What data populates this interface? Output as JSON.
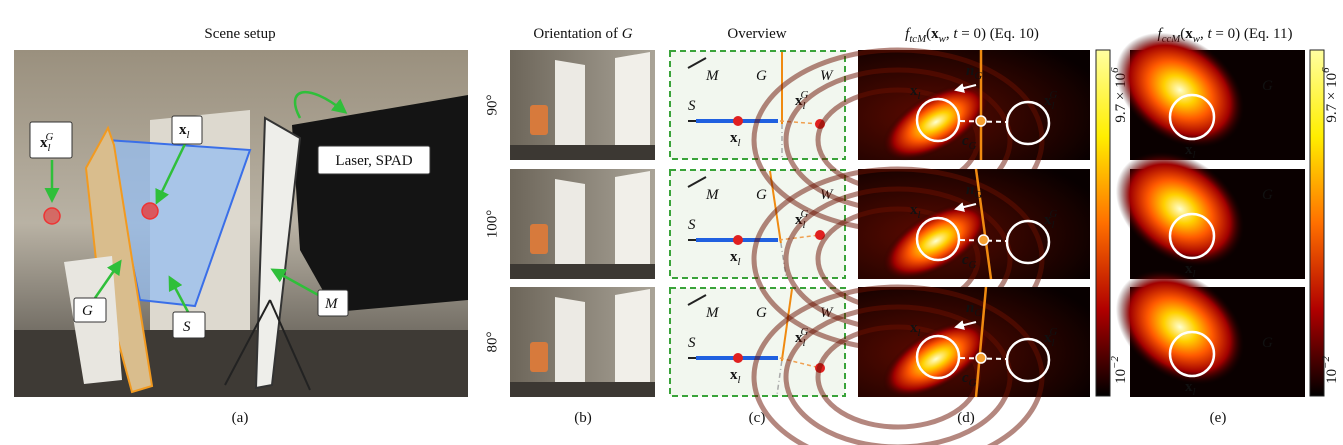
{
  "panel_a": {
    "title": "Scene setup",
    "caption": "(a)",
    "labels": {
      "xlG": [
        {
          "t": "x",
          "s": "b"
        },
        {
          "t": "l",
          "s": "sub"
        },
        {
          "t": "G",
          "s": "sup"
        }
      ],
      "xl": [
        {
          "t": "x",
          "s": "b"
        },
        {
          "t": "l",
          "s": "sub"
        }
      ],
      "G": [
        {
          "t": "G",
          "s": "i"
        }
      ],
      "S": [
        {
          "t": "S",
          "s": "i"
        }
      ],
      "M": [
        {
          "t": "M",
          "s": "i"
        }
      ],
      "laser": "Laser, SPAD"
    }
  },
  "panel_b": {
    "title": [
      {
        "t": "Orientation of ",
        "s": "r"
      },
      {
        "t": "G",
        "s": "i"
      }
    ],
    "caption": "(b)",
    "rows": [
      "90°",
      "100°",
      "80°"
    ]
  },
  "panel_c": {
    "title": "Overview",
    "caption": "(c)",
    "labels": {
      "M": [
        {
          "t": "M",
          "s": "i"
        }
      ],
      "G": [
        {
          "t": "G",
          "s": "i"
        }
      ],
      "W": [
        {
          "t": "W",
          "s": "i"
        }
      ],
      "S": [
        {
          "t": "S",
          "s": "i"
        }
      ],
      "xl": [
        {
          "t": "x",
          "s": "b"
        },
        {
          "t": "l",
          "s": "sub"
        }
      ],
      "xlG": [
        {
          "t": "x",
          "s": "b"
        },
        {
          "t": "l",
          "s": "sub"
        },
        {
          "t": "G",
          "s": "sup"
        }
      ]
    }
  },
  "panel_d": {
    "title": [
      {
        "t": "f",
        "s": "i"
      },
      {
        "t": "tcM",
        "s": "sub"
      },
      {
        "t": "(",
        "s": "r"
      },
      {
        "t": "x",
        "s": "b"
      },
      {
        "t": "w",
        "s": "sub"
      },
      {
        "t": ", ",
        "s": "r"
      },
      {
        "t": "t",
        "s": "i"
      },
      {
        "t": " = 0) (Eq. 10)",
        "s": "r"
      }
    ],
    "caption": "(d)",
    "labels": {
      "nG": [
        {
          "t": "n",
          "s": "bi"
        },
        {
          "t": "G",
          "s": "sub"
        }
      ],
      "xl": [
        {
          "t": "x",
          "s": "b"
        },
        {
          "t": "l",
          "s": "sub"
        }
      ],
      "xlG": [
        {
          "t": "x",
          "s": "b"
        },
        {
          "t": "l",
          "s": "sub"
        },
        {
          "t": "G",
          "s": "sup"
        }
      ],
      "cG": [
        {
          "t": "c",
          "s": "bi"
        },
        {
          "t": "G",
          "s": "sub"
        }
      ]
    },
    "colorbar_max": [
      {
        "t": "9.7 × 10",
        "s": "r"
      },
      {
        "t": "6",
        "s": "sup"
      }
    ],
    "colorbar_min": [
      {
        "t": "10",
        "s": "r"
      },
      {
        "t": "−2",
        "s": "sup"
      }
    ]
  },
  "panel_e": {
    "title": [
      {
        "t": "f",
        "s": "i"
      },
      {
        "t": "ccM",
        "s": "sub"
      },
      {
        "t": "(",
        "s": "r"
      },
      {
        "t": "x",
        "s": "b"
      },
      {
        "t": "w",
        "s": "sub"
      },
      {
        "t": ", ",
        "s": "r"
      },
      {
        "t": "t",
        "s": "i"
      },
      {
        "t": " = 0) (Eq. 11)",
        "s": "r"
      }
    ],
    "caption": "(e)",
    "labels": {
      "G": [
        {
          "t": "G",
          "s": "i"
        }
      ],
      "xl": [
        {
          "t": "x",
          "s": "b"
        },
        {
          "t": "l",
          "s": "sub"
        }
      ]
    },
    "colorbar_max": [
      {
        "t": "9.7 × 10",
        "s": "r"
      },
      {
        "t": "6",
        "s": "sup"
      }
    ],
    "colorbar_min": [
      {
        "t": "10",
        "s": "r"
      },
      {
        "t": "−2",
        "s": "sup"
      }
    ]
  }
}
